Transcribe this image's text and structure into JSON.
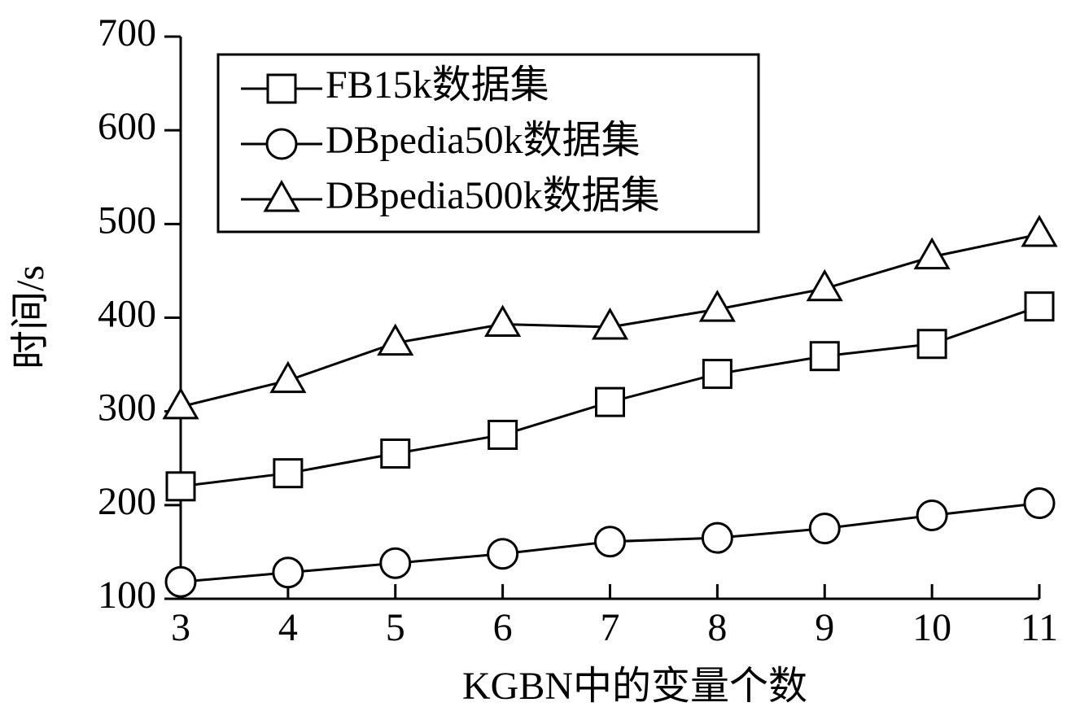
{
  "chart_data": {
    "type": "line",
    "x_label": "KGBN中的变量个数",
    "y_label": "时间/s",
    "x": [
      3,
      4,
      5,
      6,
      7,
      8,
      9,
      10,
      11
    ],
    "xlim": [
      3,
      11
    ],
    "xticks": [
      3,
      4,
      5,
      6,
      7,
      8,
      9,
      10,
      11
    ],
    "ylim": [
      100,
      700
    ],
    "yticks": [
      100,
      200,
      300,
      400,
      500,
      600,
      700
    ],
    "legend": "upper left",
    "series": [
      {
        "name": "FB15k数据集",
        "color": "#000000",
        "marker": "square",
        "values": [
          220,
          234,
          255,
          275,
          310,
          340,
          359,
          372,
          412
        ]
      },
      {
        "name": "DBpedia50k数据集",
        "color": "#000000",
        "marker": "circle",
        "values": [
          118,
          128,
          138,
          148,
          161,
          165,
          175,
          189,
          202
        ]
      },
      {
        "name": "DBpedia500k数据集",
        "color": "#000000",
        "marker": "triangle",
        "values": [
          305,
          333,
          373,
          393,
          390,
          409,
          431,
          465,
          489
        ]
      }
    ]
  }
}
